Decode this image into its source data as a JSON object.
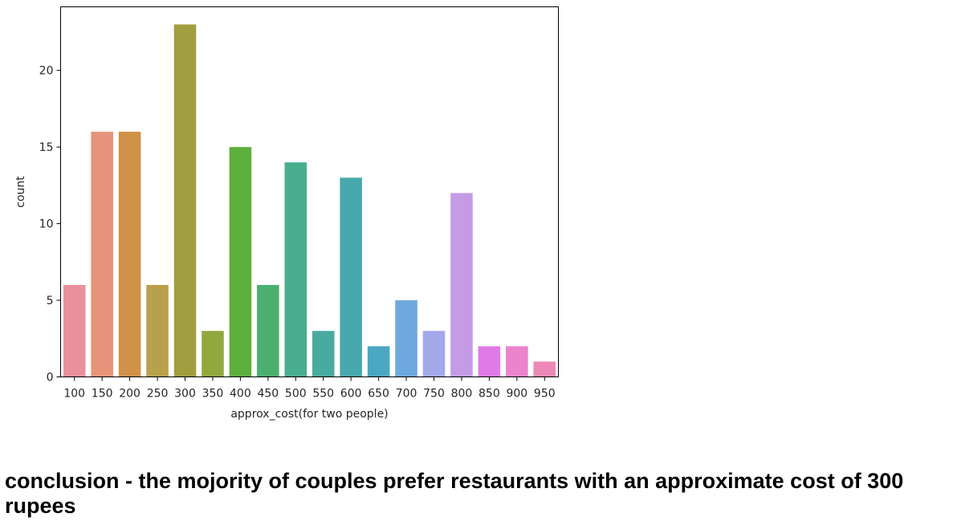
{
  "chart_data": {
    "type": "bar",
    "title": "",
    "xlabel": "approx_cost(for two people)",
    "ylabel": "count",
    "categories": [
      "100",
      "150",
      "200",
      "250",
      "300",
      "350",
      "400",
      "450",
      "500",
      "550",
      "600",
      "650",
      "700",
      "750",
      "800",
      "850",
      "900",
      "950"
    ],
    "values": [
      6,
      16,
      16,
      6,
      23,
      3,
      15,
      6,
      14,
      3,
      13,
      2,
      5,
      3,
      12,
      2,
      2,
      1
    ],
    "colors": [
      "#e8909d",
      "#e69479",
      "#d19149",
      "#b9a04c",
      "#a09e3e",
      "#91a83e",
      "#5daf3b",
      "#4bb06f",
      "#48ae8e",
      "#49ab9f",
      "#47a9ad",
      "#4aa7c2",
      "#6ea9dd",
      "#a3a8ea",
      "#c59be8",
      "#e07be6",
      "#eb83cd",
      "#ed89b6"
    ],
    "yticks": [
      0,
      5,
      10,
      15,
      20
    ],
    "ylim": [
      0,
      24.15
    ],
    "grid": false,
    "legend": "none"
  },
  "conclusion": "conclusion - the mojority of couples prefer restaurants with an approximate cost of 300 rupees"
}
